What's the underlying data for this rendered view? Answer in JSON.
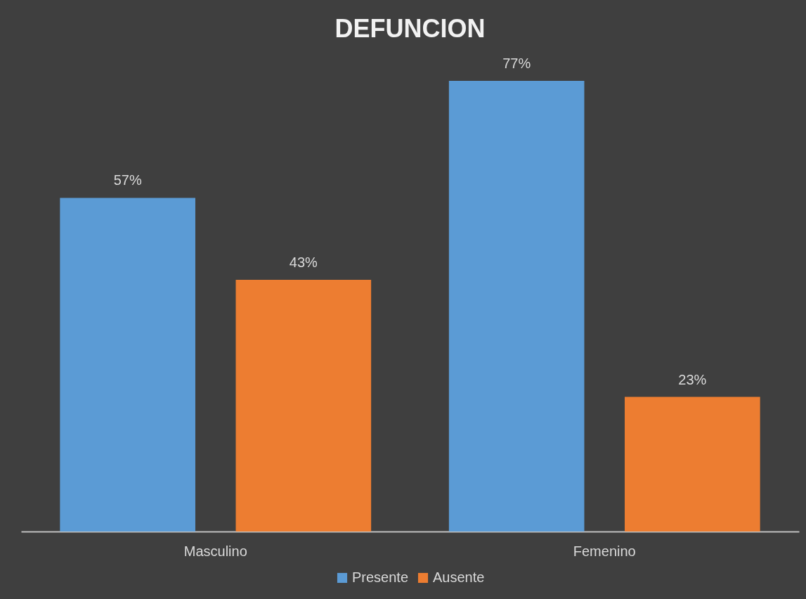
{
  "chart_data": {
    "type": "bar",
    "title": "DEFUNCION",
    "categories": [
      "Masculino",
      "Femenino"
    ],
    "series": [
      {
        "name": "Presente",
        "color": "#5b9bd5",
        "values": [
          57,
          77
        ],
        "value_labels": [
          "57%",
          "77%"
        ]
      },
      {
        "name": "Ausente",
        "color": "#ed7d31",
        "values": [
          43,
          23
        ],
        "value_labels": [
          "43%",
          "23%"
        ]
      }
    ],
    "legend": "bottom",
    "grid": false
  }
}
